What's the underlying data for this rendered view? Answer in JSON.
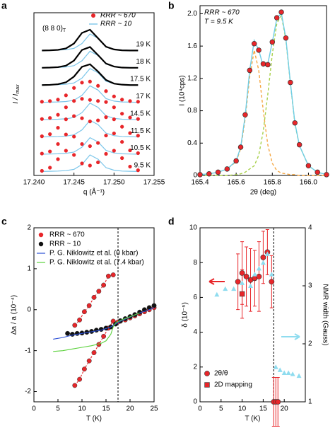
{
  "chart_data": [
    {
      "panel": "a",
      "type": "line",
      "annotation": "(8 8 0)",
      "annotation_sub": "T",
      "xlabel": "q (Å⁻¹)",
      "ylabel": "I / I",
      "ylabel_sub": "max",
      "xlim": [
        17.24,
        17.255
      ],
      "xticks": [
        {
          "value": 17.24,
          "label": "17.240"
        },
        17.245,
        {
          "value": 17.25,
          "label": "17.250"
        },
        17.255
      ],
      "legend": [
        {
          "name": "RRR ~ 670",
          "color": "#e8262a"
        },
        {
          "name": "RRR ~ 10",
          "color": "#7cc6ea"
        }
      ],
      "x": [
        17.241,
        17.242,
        17.243,
        17.244,
        17.245,
        17.246,
        17.247,
        17.248,
        17.249,
        17.25,
        17.251,
        17.252,
        17.253
      ],
      "reference_values": [
        0.02,
        0.03,
        0.04,
        0.06,
        0.12,
        0.35,
        0.8,
        0.6,
        0.2,
        0.08,
        0.04,
        0.03,
        0.02
      ],
      "series": [
        {
          "name": "19 K",
          "color": "#000000",
          "values": [
            0.02,
            0.03,
            0.05,
            0.12,
            0.35,
            0.85,
            1.0,
            0.6,
            0.2,
            0.07,
            0.03,
            0.02,
            0.02
          ]
        },
        {
          "name": "18 K",
          "color": "#000000",
          "values": [
            0.02,
            0.03,
            0.05,
            0.12,
            0.36,
            0.86,
            1.0,
            0.62,
            0.22,
            0.08,
            0.03,
            0.02,
            0.02
          ]
        },
        {
          "name": "17.5 K",
          "color": "#000000",
          "values": [
            0.02,
            0.03,
            0.06,
            0.15,
            0.42,
            0.88,
            1.0,
            0.66,
            0.26,
            0.09,
            0.04,
            0.02,
            0.02
          ]
        },
        {
          "name": "17 K",
          "color": "#e8262a",
          "values": [
            0.05,
            0.08,
            0.15,
            0.35,
            0.7,
            0.95,
            1.0,
            0.8,
            0.55,
            0.3,
            0.15,
            0.08,
            0.05
          ]
        },
        {
          "name": "14.5 K",
          "color": "#e8262a",
          "values": [
            0.05,
            0.1,
            0.25,
            0.6,
            0.9,
            1.0,
            0.95,
            0.9,
            0.85,
            0.6,
            0.3,
            0.12,
            0.05
          ]
        },
        {
          "name": "11.5 K",
          "color": "#e8262a",
          "values": [
            0.05,
            0.15,
            0.45,
            0.85,
            1.0,
            0.9,
            0.75,
            0.8,
            0.95,
            0.85,
            0.5,
            0.2,
            0.08
          ]
        },
        {
          "name": "10.5 K",
          "color": "#e8262a",
          "values": [
            0.05,
            0.15,
            0.5,
            0.95,
            0.85,
            0.5,
            0.4,
            0.55,
            0.9,
            1.0,
            0.6,
            0.2,
            0.07
          ]
        },
        {
          "name": "9.5 K",
          "color": "#e8262a",
          "values": [
            0.05,
            0.2,
            0.6,
            1.0,
            0.8,
            0.4,
            0.3,
            0.45,
            0.85,
            1.0,
            0.65,
            0.25,
            0.08
          ]
        }
      ]
    },
    {
      "panel": "b",
      "type": "scatter",
      "texts": [
        "RRR ~ 670",
        "T = 9.5 K"
      ],
      "xlabel": "2θ (deg)",
      "ylabel": "I (10⁴cps)",
      "xlim": [
        165.4,
        166.1
      ],
      "xticks": [
        165.4,
        165.6,
        165.8,
        {
          "value": 166.0,
          "label": "166.0"
        }
      ],
      "ylim": [
        0,
        2.1
      ],
      "yticks": [
        0,
        0.4,
        0.8,
        1.2,
        1.6,
        {
          "value": 2.0,
          "label": "2.0"
        }
      ],
      "color": "#e8262a",
      "x": [
        165.4,
        165.45,
        165.5,
        165.55,
        165.6,
        165.625,
        165.65,
        165.675,
        165.7,
        165.725,
        165.75,
        165.775,
        165.8,
        165.825,
        165.85,
        165.875,
        165.9,
        165.925,
        165.95,
        166.0,
        166.05,
        166.1
      ],
      "values": [
        0.01,
        0.02,
        0.04,
        0.08,
        0.18,
        0.35,
        0.75,
        1.3,
        1.63,
        1.55,
        1.38,
        1.37,
        1.65,
        1.95,
        2.02,
        1.7,
        1.15,
        0.65,
        0.38,
        0.12,
        0.04,
        0.01
      ],
      "fits": [
        {
          "color": "#f5a742",
          "dashed": true,
          "values": [
            0.01,
            0.02,
            0.04,
            0.08,
            0.17,
            0.33,
            0.7,
            1.22,
            1.55,
            1.3,
            0.8,
            0.38,
            0.15,
            0.06,
            0.03,
            0.02,
            0.01,
            0.01,
            0,
            0,
            0,
            0
          ]
        },
        {
          "color": "#a8d04a",
          "dashed": true,
          "values": [
            0,
            0,
            0,
            0,
            0.01,
            0.02,
            0.04,
            0.08,
            0.12,
            0.25,
            0.55,
            1.0,
            1.5,
            1.88,
            1.98,
            1.68,
            1.14,
            0.64,
            0.37,
            0.12,
            0.04,
            0.01
          ]
        },
        {
          "color": "#6fcde6",
          "dashed": false,
          "values": [
            0.01,
            0.02,
            0.04,
            0.08,
            0.18,
            0.35,
            0.74,
            1.3,
            1.67,
            1.55,
            1.35,
            1.38,
            1.65,
            1.94,
            2.01,
            1.7,
            1.15,
            0.65,
            0.37,
            0.12,
            0.04,
            0.01
          ]
        }
      ]
    },
    {
      "panel": "c",
      "type": "scatter",
      "xlabel": "T (K)",
      "ylabel": "Δa / a (10⁻⁴)",
      "xlim": [
        0,
        25
      ],
      "xticks": [
        0,
        5,
        10,
        15,
        20,
        25
      ],
      "ylim": [
        -2.25,
        2
      ],
      "yticks": [
        -2,
        -1,
        0,
        1,
        2
      ],
      "vline": 17.5,
      "legend": "upper left",
      "series": [
        {
          "name": "RRR ~ 670",
          "color": "#e8262a",
          "style": "dots-dashed",
          "x": [
            8.5,
            9.5,
            10.5,
            11.5,
            12.5,
            13.5,
            14.5,
            15.5,
            16.5,
            null,
            8.5,
            9.5,
            10.5,
            11.5,
            12.5,
            13.5,
            14.5,
            15.5,
            16.5,
            17.5,
            18,
            19,
            20,
            21,
            22,
            23,
            24,
            25
          ],
          "values": [
            -0.38,
            -0.25,
            -0.05,
            0.1,
            0.3,
            0.45,
            0.6,
            0.82,
            0.85,
            null,
            -1.85,
            -1.7,
            -1.45,
            -1.25,
            -1.05,
            -0.85,
            -0.65,
            -0.45,
            -0.28,
            -0.3,
            -0.28,
            -0.25,
            -0.2,
            -0.15,
            -0.1,
            -0.05,
            0.0,
            0.05
          ]
        },
        {
          "name": "RRR ~ 10",
          "color": "#111111",
          "style": "dots",
          "x": [
            7,
            8,
            9,
            10,
            11,
            12,
            13,
            14,
            15,
            16,
            17,
            18,
            19,
            20,
            21,
            22,
            23,
            24,
            25
          ],
          "values": [
            -0.58,
            -0.6,
            -0.58,
            -0.57,
            -0.55,
            -0.53,
            -0.5,
            -0.48,
            -0.45,
            -0.42,
            -0.35,
            -0.27,
            -0.22,
            -0.17,
            -0.12,
            -0.06,
            0.0,
            0.05,
            0.1
          ]
        },
        {
          "name": "P. G. Niklowitz et al. (0 kbar)",
          "color": "#2b4fd6",
          "style": "line",
          "x": [
            4,
            6,
            8,
            10,
            12,
            14,
            16,
            17,
            18,
            20,
            22,
            24,
            25
          ],
          "values": [
            -0.72,
            -0.68,
            -0.62,
            -0.58,
            -0.54,
            -0.5,
            -0.42,
            -0.35,
            -0.28,
            -0.18,
            -0.08,
            0.0,
            0.05
          ]
        },
        {
          "name": "P. G. Niklowitz et al. (7.4 kbar)",
          "color": "#5bd13c",
          "style": "line",
          "x": [
            4,
            6,
            8,
            10,
            12,
            14,
            15,
            16,
            16.5,
            17,
            18,
            20,
            22
          ],
          "values": [
            -1.02,
            -1.0,
            -0.96,
            -0.92,
            -0.88,
            -0.82,
            -0.76,
            -0.6,
            -0.42,
            -0.32,
            -0.26,
            -0.17,
            -0.08
          ]
        }
      ]
    },
    {
      "panel": "d",
      "type": "scatter",
      "xlabel": "T (K)",
      "ylabel": "δ (10⁻⁵)",
      "y2label": "NMR width (Gauss)",
      "xlim": [
        0,
        25
      ],
      "xticks": [
        0,
        5,
        10,
        15,
        20
      ],
      "ylim": [
        0,
        10
      ],
      "yticks": [
        0,
        2,
        4,
        6,
        8,
        10
      ],
      "y2lim": [
        1,
        4
      ],
      "y2ticks": [
        1,
        2,
        3,
        4
      ],
      "vline": 17.5,
      "legend": "lower left",
      "series": [
        {
          "name": "2θ/θ",
          "color": "#e8262a",
          "marker": "circle",
          "x": [
            9,
            10,
            11,
            12,
            13,
            14,
            15,
            16,
            17,
            17.5,
            18,
            18.5
          ],
          "values": [
            6.9,
            7.4,
            7.2,
            7.0,
            7.1,
            7.2,
            8.3,
            8.6,
            6.9,
            0,
            0,
            0
          ],
          "errors": [
            1.6,
            1.8,
            1.7,
            1.8,
            1.6,
            2.0,
            1.5,
            1.3,
            1.5,
            1.4,
            1.4,
            1.4
          ]
        },
        {
          "name": "2D mapping",
          "color": "#e8262a",
          "marker": "square",
          "x": [
            10
          ],
          "values": [
            6.2
          ],
          "errors": [
            1.4
          ]
        },
        {
          "axis": "y2",
          "color": "#8fdcef",
          "marker": "triangle",
          "x": [
            4,
            6,
            8,
            10,
            12,
            13,
            14,
            15,
            16,
            17,
            18,
            19,
            20,
            21,
            22,
            23.5
          ],
          "values": [
            2.85,
            2.95,
            2.95,
            3.05,
            3.0,
            3.2,
            3.3,
            3.4,
            3.55,
            3.2,
            1.6,
            1.55,
            1.5,
            1.5,
            1.48,
            1.45
          ]
        }
      ]
    }
  ]
}
